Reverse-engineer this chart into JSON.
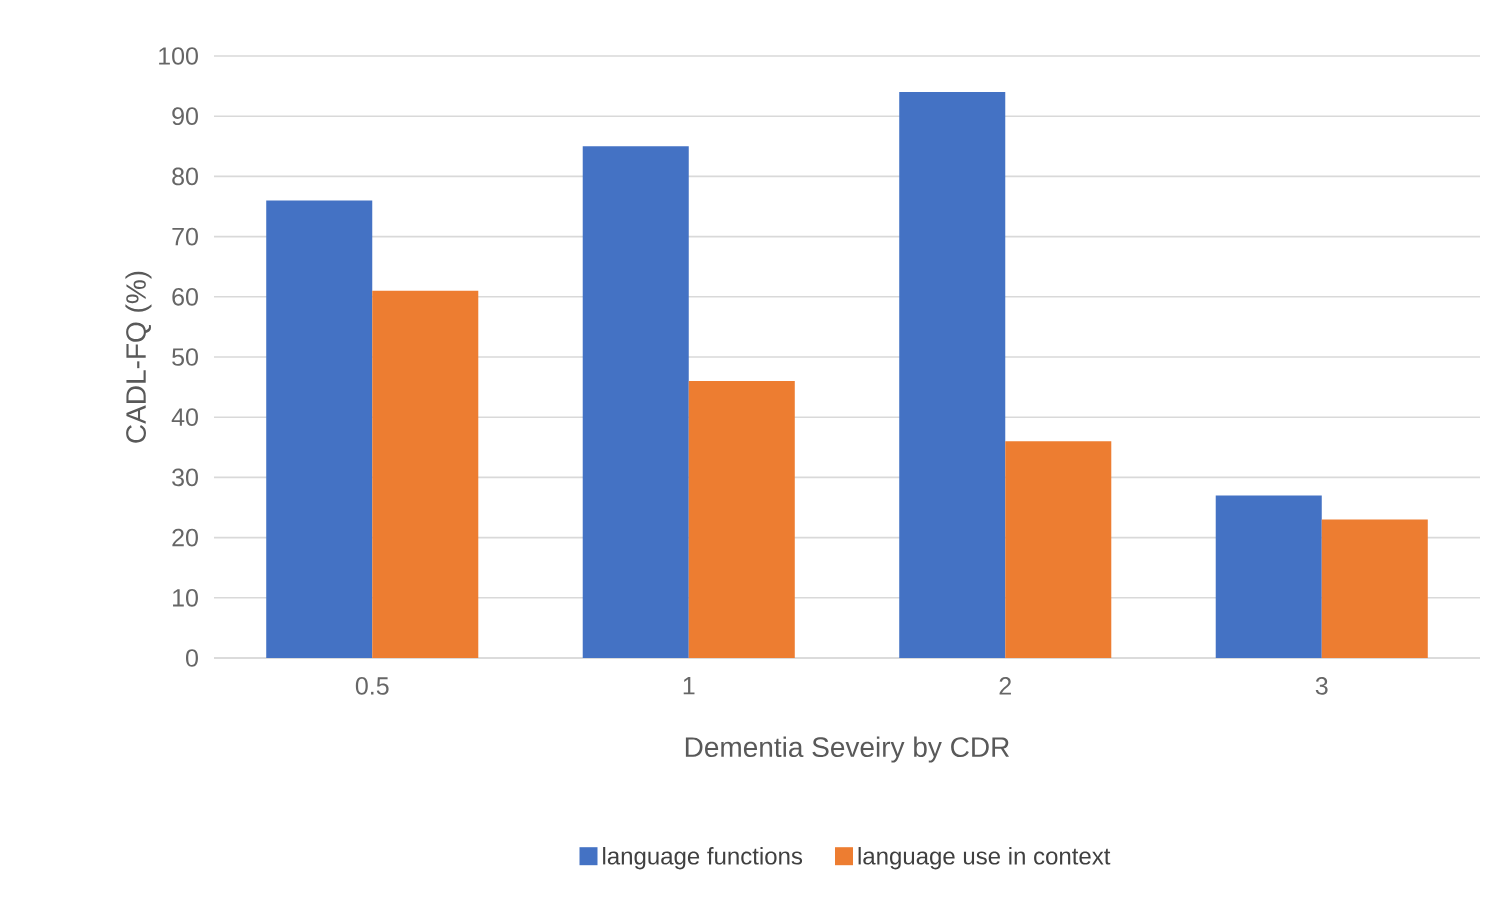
{
  "chart_data": {
    "type": "bar",
    "xlabel": "Dementia Seveiry by CDR",
    "ylabel": "CADL-FQ (%)",
    "categories": [
      "0.5",
      "1",
      "2",
      "3"
    ],
    "series": [
      {
        "name": "language functions",
        "color": "#4472c4",
        "values": [
          76,
          85,
          94,
          27
        ]
      },
      {
        "name": "language use in context",
        "color": "#ed7d31",
        "values": [
          61,
          46,
          36,
          23
        ]
      }
    ],
    "ylim": [
      0,
      100
    ],
    "yticks": [
      0,
      10,
      20,
      30,
      40,
      50,
      60,
      70,
      80,
      90,
      100
    ],
    "grid": "y",
    "legend": "bottom"
  }
}
